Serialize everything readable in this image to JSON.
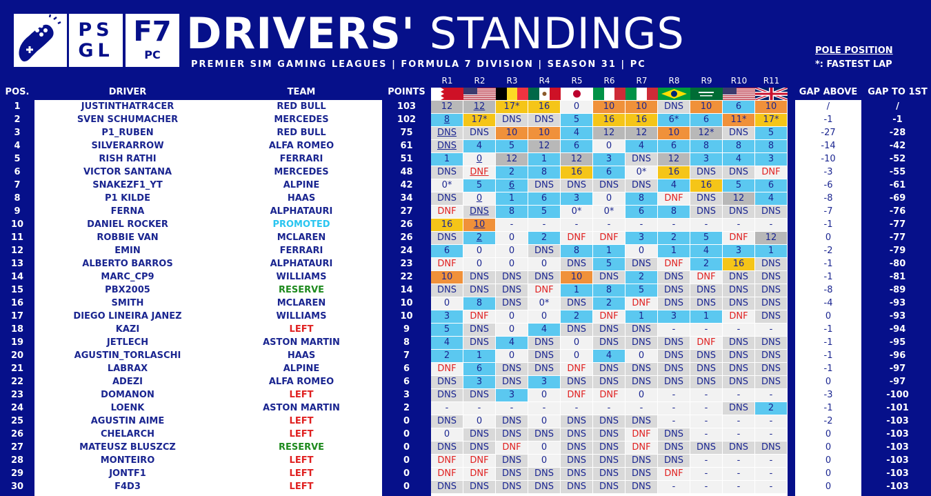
{
  "header": {
    "title_bold": "DRIVERS'",
    "title_light": "STANDINGS",
    "subtitle": "PREMIER SIM GAMING LEAGUES | FORMULA 7 DIVISION | SEASON 31 | PC",
    "logo_psgl_top": "PS",
    "logo_psgl_bottom": "GL",
    "logo_f7": "F7",
    "logo_pc": "PC",
    "legend_pole": "POLE POSITION",
    "legend_fastest": "*: FASTEST LAP"
  },
  "columns": {
    "pos": "POS.",
    "driver": "DRIVER",
    "team": "TEAM",
    "points": "POINTS",
    "gap_above": "GAP ABOVE",
    "gap_first": "GAP TO 1ST",
    "rounds": [
      "R1",
      "R2",
      "R3",
      "R4",
      "R5",
      "R6",
      "R7",
      "R8",
      "R9",
      "R10",
      "R11"
    ]
  },
  "colors": {
    "background": "#06108a",
    "team_default": "#1a2590",
    "team_left": "#e02020",
    "team_promoted": "#29c5f0",
    "team_reserve": "#1e8a1e",
    "result_1": "#f5c518",
    "result_2": "#b8b8b8",
    "result_3": "#f0913a",
    "result_points": "#5bc8f0",
    "result_nopoints": "#f2f2f2",
    "result_dns": "#d9d9d9",
    "dnf_text": "#e02020"
  },
  "rows": [
    {
      "pos": "1",
      "driver": "JUSTINTHATR4CER",
      "team": "RED BULL",
      "team_status": "normal",
      "points": "103",
      "results": [
        "12",
        "12",
        "17*",
        "16",
        "0",
        "10",
        "10",
        "DNS",
        "10",
        "6",
        "10"
      ],
      "gap_above": "/",
      "gap_first": "/"
    },
    {
      "pos": "2",
      "driver": "SVEN SCHUMACHER",
      "team": "MERCEDES",
      "team_status": "normal",
      "points": "102",
      "results": [
        "8",
        "17*",
        "DNS",
        "DNS",
        "5",
        "16",
        "16",
        "6*",
        "6",
        "11*",
        "17*"
      ],
      "gap_above": "-1",
      "gap_first": "-1"
    },
    {
      "pos": "3",
      "driver": "P1_RUBEN",
      "team": "RED BULL",
      "team_status": "normal",
      "points": "75",
      "results": [
        "DNS",
        "DNS",
        "10",
        "10",
        "4",
        "12",
        "12",
        "10",
        "12*",
        "DNS",
        "5"
      ],
      "gap_above": "-27",
      "gap_first": "-28"
    },
    {
      "pos": "4",
      "driver": "SILVERARROW",
      "team": "ALFA ROMEO",
      "team_status": "normal",
      "points": "61",
      "results": [
        "DNS",
        "4",
        "5",
        "12",
        "6",
        "0",
        "4",
        "6",
        "8",
        "8",
        "8"
      ],
      "gap_above": "-14",
      "gap_first": "-42"
    },
    {
      "pos": "5",
      "driver": "RISH RATHI",
      "team": "FERRARI",
      "team_status": "normal",
      "points": "51",
      "results": [
        "1",
        "0",
        "12",
        "1",
        "12",
        "3",
        "DNS",
        "12",
        "3",
        "4",
        "3"
      ],
      "gap_above": "-10",
      "gap_first": "-52"
    },
    {
      "pos": "6",
      "driver": "VICTOR SANTANA",
      "team": "MERCEDES",
      "team_status": "normal",
      "points": "48",
      "results": [
        "DNS",
        "DNF",
        "2",
        "8",
        "16",
        "6",
        "0*",
        "16",
        "DNS",
        "DNS",
        "DNF"
      ],
      "gap_above": "-3",
      "gap_first": "-55"
    },
    {
      "pos": "7",
      "driver": "SNAKEZF1_YT",
      "team": "ALPINE",
      "team_status": "normal",
      "points": "42",
      "results": [
        "0*",
        "5",
        "6",
        "DNS",
        "DNS",
        "DNS",
        "DNS",
        "4",
        "16",
        "5",
        "6"
      ],
      "gap_above": "-6",
      "gap_first": "-61"
    },
    {
      "pos": "8",
      "driver": "P1 KILDE",
      "team": "HAAS",
      "team_status": "normal",
      "points": "34",
      "results": [
        "DNS",
        "0",
        "1",
        "6",
        "3",
        "0",
        "8",
        "DNF",
        "DNS",
        "12",
        "4"
      ],
      "gap_above": "-8",
      "gap_first": "-69"
    },
    {
      "pos": "9",
      "driver": "FERNA",
      "team": "ALPHATAURI",
      "team_status": "normal",
      "points": "27",
      "results": [
        "DNF",
        "DNS",
        "8",
        "5",
        "0*",
        "0*",
        "6",
        "8",
        "DNS",
        "DNS",
        "DNS"
      ],
      "gap_above": "-7",
      "gap_first": "-76"
    },
    {
      "pos": "10",
      "driver": "DANIEL ROCKER",
      "team": "PROMOTED",
      "team_status": "promoted",
      "points": "26",
      "results": [
        "16",
        "10",
        "-",
        "-",
        "-",
        "-",
        "-",
        "-",
        "-",
        "-",
        "-"
      ],
      "gap_above": "-1",
      "gap_first": "-77"
    },
    {
      "pos": "11",
      "driver": "ROBBIE VAN",
      "team": "MCLAREN",
      "team_status": "normal",
      "points": "26",
      "results": [
        "DNS",
        "2",
        "0",
        "2",
        "DNF",
        "DNF",
        "3",
        "2",
        "5",
        "DNF",
        "12"
      ],
      "gap_above": "0",
      "gap_first": "-77"
    },
    {
      "pos": "12",
      "driver": "EMIN",
      "team": "FERRARI",
      "team_status": "normal",
      "points": "24",
      "results": [
        "6",
        "0",
        "0",
        "DNS",
        "8",
        "1",
        "0",
        "1",
        "4",
        "3",
        "1"
      ],
      "gap_above": "-2",
      "gap_first": "-79"
    },
    {
      "pos": "13",
      "driver": "ALBERTO BARROS",
      "team": "ALPHATAURI",
      "team_status": "normal",
      "points": "23",
      "results": [
        "DNF",
        "0",
        "0",
        "0",
        "DNS",
        "5",
        "DNS",
        "DNF",
        "2",
        "16",
        "DNS"
      ],
      "gap_above": "-1",
      "gap_first": "-80"
    },
    {
      "pos": "14",
      "driver": "MARC_CP9",
      "team": "WILLIAMS",
      "team_status": "normal",
      "points": "22",
      "results": [
        "10",
        "DNS",
        "DNS",
        "DNS",
        "10",
        "DNS",
        "2",
        "DNS",
        "DNF",
        "DNS",
        "DNS"
      ],
      "gap_above": "-1",
      "gap_first": "-81"
    },
    {
      "pos": "15",
      "driver": "PBX2005",
      "team": "RESERVE",
      "team_status": "reserve",
      "points": "14",
      "results": [
        "DNS",
        "DNS",
        "DNS",
        "DNF",
        "1",
        "8",
        "5",
        "DNS",
        "DNS",
        "DNS",
        "DNS"
      ],
      "gap_above": "-8",
      "gap_first": "-89"
    },
    {
      "pos": "16",
      "driver": "SMITH",
      "team": "MCLAREN",
      "team_status": "normal",
      "points": "10",
      "results": [
        "0",
        "8",
        "DNS",
        "0*",
        "DNS",
        "2",
        "DNF",
        "DNS",
        "DNS",
        "DNS",
        "DNS"
      ],
      "gap_above": "-4",
      "gap_first": "-93"
    },
    {
      "pos": "17",
      "driver": "DIEGO LINEIRA JANEZ",
      "team": "WILLIAMS",
      "team_status": "normal",
      "points": "10",
      "results": [
        "3",
        "DNF",
        "0",
        "0",
        "2",
        "DNF",
        "1",
        "3",
        "1",
        "DNF",
        "DNS"
      ],
      "gap_above": "0",
      "gap_first": "-93"
    },
    {
      "pos": "18",
      "driver": "KAZI",
      "team": "LEFT",
      "team_status": "left",
      "points": "9",
      "results": [
        "5",
        "DNS",
        "0",
        "4",
        "DNS",
        "DNS",
        "DNS",
        "-",
        "-",
        "-",
        "-"
      ],
      "gap_above": "-1",
      "gap_first": "-94"
    },
    {
      "pos": "19",
      "driver": "JETLECH",
      "team": "ASTON MARTIN",
      "team_status": "normal",
      "points": "8",
      "results": [
        "4",
        "DNS",
        "4",
        "DNS",
        "0",
        "DNS",
        "DNS",
        "DNS",
        "DNF",
        "DNS",
        "DNS"
      ],
      "gap_above": "-1",
      "gap_first": "-95"
    },
    {
      "pos": "20",
      "driver": "AGUSTIN_TORLASCHI",
      "team": "HAAS",
      "team_status": "normal",
      "points": "7",
      "results": [
        "2",
        "1",
        "0",
        "DNS",
        "0",
        "4",
        "0",
        "DNS",
        "DNS",
        "DNS",
        "DNS"
      ],
      "gap_above": "-1",
      "gap_first": "-96"
    },
    {
      "pos": "21",
      "driver": "LABRAX",
      "team": "ALPINE",
      "team_status": "normal",
      "points": "6",
      "results": [
        "DNF",
        "6",
        "DNS",
        "DNS",
        "DNF",
        "DNS",
        "DNS",
        "DNS",
        "DNS",
        "DNS",
        "DNS"
      ],
      "gap_above": "-1",
      "gap_first": "-97"
    },
    {
      "pos": "22",
      "driver": "ADEZI",
      "team": "ALFA ROMEO",
      "team_status": "normal",
      "points": "6",
      "results": [
        "DNS",
        "3",
        "DNS",
        "3",
        "DNS",
        "DNS",
        "DNS",
        "DNS",
        "DNS",
        "DNS",
        "DNS"
      ],
      "gap_above": "0",
      "gap_first": "-97"
    },
    {
      "pos": "23",
      "driver": "DOMANON",
      "team": "LEFT",
      "team_status": "left",
      "points": "3",
      "results": [
        "DNS",
        "DNS",
        "3",
        "0",
        "DNF",
        "DNF",
        "0",
        "-",
        "-",
        "-",
        "-"
      ],
      "gap_above": "-3",
      "gap_first": "-100"
    },
    {
      "pos": "24",
      "driver": "LOENK",
      "team": "ASTON MARTIN",
      "team_status": "normal",
      "points": "2",
      "results": [
        "-",
        "-",
        "-",
        "-",
        "-",
        "-",
        "-",
        "-",
        "-",
        "DNS",
        "2"
      ],
      "gap_above": "-1",
      "gap_first": "-101"
    },
    {
      "pos": "25",
      "driver": "AGUSTIN AIME",
      "team": "LEFT",
      "team_status": "left",
      "points": "0",
      "results": [
        "DNS",
        "0",
        "DNS",
        "0",
        "DNS",
        "DNS",
        "DNS",
        "-",
        "-",
        "-",
        "-"
      ],
      "gap_above": "-2",
      "gap_first": "-103"
    },
    {
      "pos": "26",
      "driver": "CHELARCH",
      "team": "LEFT",
      "team_status": "left",
      "points": "0",
      "results": [
        "0",
        "DNS",
        "DNS",
        "DNS",
        "DNS",
        "DNS",
        "DNF",
        "DNS",
        "-",
        "-",
        "-"
      ],
      "gap_above": "0",
      "gap_first": "-103"
    },
    {
      "pos": "27",
      "driver": "MATEUSZ BLUSZCZ",
      "team": "RESERVE",
      "team_status": "reserve",
      "points": "0",
      "results": [
        "DNS",
        "DNS",
        "DNF",
        "0",
        "DNS",
        "DNS",
        "DNF",
        "DNS",
        "DNS",
        "DNS",
        "DNS"
      ],
      "gap_above": "0",
      "gap_first": "-103"
    },
    {
      "pos": "28",
      "driver": "MONTEIRO",
      "team": "LEFT",
      "team_status": "left",
      "points": "0",
      "results": [
        "DNF",
        "DNF",
        "DNS",
        "0",
        "DNS",
        "DNS",
        "DNS",
        "DNS",
        "-",
        "-",
        "-"
      ],
      "gap_above": "0",
      "gap_first": "-103"
    },
    {
      "pos": "29",
      "driver": "JONTF1",
      "team": "LEFT",
      "team_status": "left",
      "points": "0",
      "results": [
        "DNF",
        "DNF",
        "DNS",
        "DNS",
        "DNS",
        "DNS",
        "DNS",
        "DNF",
        "-",
        "-",
        "-"
      ],
      "gap_above": "0",
      "gap_first": "-103"
    },
    {
      "pos": "30",
      "driver": "F4D3",
      "team": "LEFT",
      "team_status": "left",
      "points": "0",
      "results": [
        "DNS",
        "DNS",
        "DNS",
        "DNS",
        "DNS",
        "DNS",
        "DNS",
        "-",
        "-",
        "-",
        "-"
      ],
      "gap_above": "0",
      "gap_first": "-103"
    }
  ],
  "poles": [
    [
      0,
      1
    ],
    [
      0,
      2
    ],
    [
      0,
      3
    ],
    [
      2,
      6
    ],
    [
      1,
      7
    ],
    [
      1,
      8
    ],
    [
      1,
      0
    ],
    [
      1,
      4
    ],
    [
      1,
      5
    ],
    [
      1,
      9
    ],
    [
      1,
      10
    ]
  ]
}
